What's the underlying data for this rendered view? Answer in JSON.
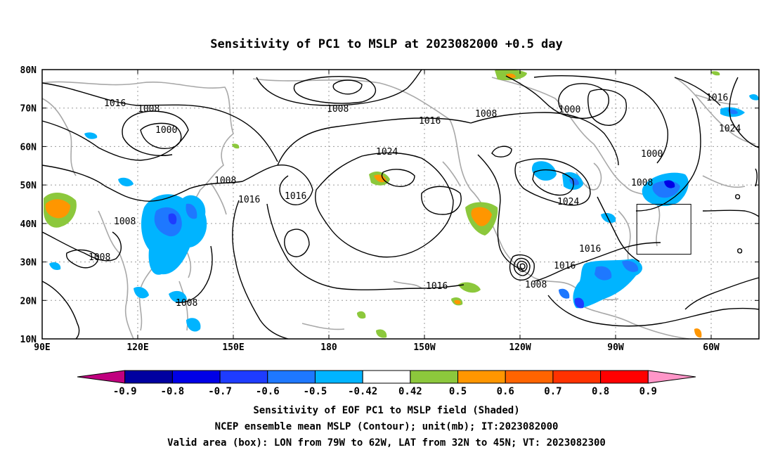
{
  "title": "Sensitivity of PC1 to MSLP at 2023082000 +0.5 day",
  "lat_labels": [
    "80N",
    "70N",
    "60N",
    "50N",
    "40N",
    "30N",
    "20N",
    "10N"
  ],
  "lon_labels": [
    "90E",
    "120E",
    "150E",
    "180",
    "150W",
    "120W",
    "90W",
    "60W"
  ],
  "colorbar": {
    "colors": [
      "#c0007f",
      "#0000a0",
      "#0000e6",
      "#1e3cff",
      "#1e78ff",
      "#00b4ff",
      "#ffffff",
      "#8cc83c",
      "#ff9600",
      "#ff6400",
      "#ff3200",
      "#ff0000",
      "#ff96c8"
    ],
    "labels": [
      "-0.9",
      "-0.8",
      "-0.7",
      "-0.6",
      "-0.5",
      "-0.42",
      "0.42",
      "0.5",
      "0.6",
      "0.7",
      "0.8",
      "0.9"
    ]
  },
  "contour_labels": [
    "1016",
    "1008",
    "1000",
    "1008",
    "1016",
    "1008",
    "1008",
    "1008",
    "1016",
    "1008",
    "1024",
    "1016",
    "1016",
    "1008",
    "1000",
    "1016",
    "1024",
    "1000",
    "1008",
    "1024",
    "1016",
    "1016",
    "1008"
  ],
  "footer": {
    "line1": "Sensitivity of EOF PC1 to MSLP field (Shaded)",
    "line2": "NCEP ensemble mean MSLP (Contour); unit(mb); IT:2023082000",
    "line3": "Valid area (box): LON from 79W to 62W, LAT from 32N to 45N; VT: 2023082300"
  }
}
